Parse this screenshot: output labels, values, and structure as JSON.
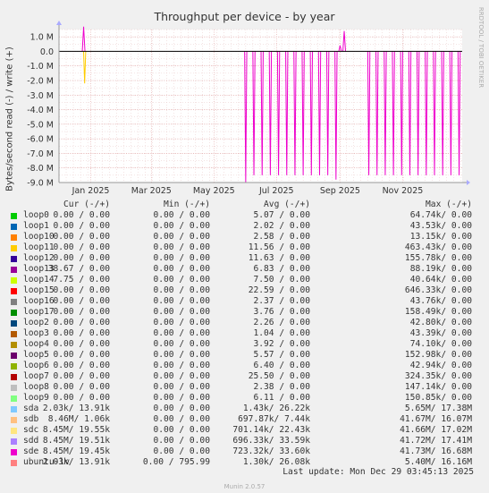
{
  "title": "Throughput per device - by year",
  "ylabel": "Bytes/second read (-) / write (+)",
  "side_label": "RRDTOOL / TOBI OETIKER",
  "footer": "Munin 2.0.57",
  "last_update": "Last update: Mon Dec 29 03:45:13 2025",
  "legend_headers": {
    "cur": "Cur (-/+)",
    "min": "Min (-/+)",
    "avg": "Avg (-/+)",
    "max": "Max (-/+)"
  },
  "legend": [
    {
      "name": "loop0",
      "color": "#00cc00",
      "cur": "0.00 /   0.00",
      "min": "0.00 /   0.00",
      "avg": "5.07 /   0.00",
      "max": "64.74k/   0.00"
    },
    {
      "name": "loop1",
      "color": "#0066b3",
      "cur": "0.00 /   0.00",
      "min": "0.00 /   0.00",
      "avg": "2.02 /   0.00",
      "max": "43.53k/   0.00"
    },
    {
      "name": "loop10",
      "color": "#ff8000",
      "cur": "0.00 /   0.00",
      "min": "0.00 /   0.00",
      "avg": "2.58 /   0.00",
      "max": "13.15k/   0.00"
    },
    {
      "name": "loop11",
      "color": "#ffcc00",
      "cur": "0.00 /   0.00",
      "min": "0.00 /   0.00",
      "avg": "11.56 /   0.00",
      "max": "463.43k/   0.00"
    },
    {
      "name": "loop12",
      "color": "#330099",
      "cur": "0.00 /   0.00",
      "min": "0.00 /   0.00",
      "avg": "11.63 /   0.00",
      "max": "155.78k/   0.00"
    },
    {
      "name": "loop13",
      "color": "#990099",
      "cur": "38.67 /   0.00",
      "min": "0.00 /   0.00",
      "avg": "6.83 /   0.00",
      "max": "88.19k/   0.00"
    },
    {
      "name": "loop14",
      "color": "#ccff00",
      "cur": "7.75 /   0.00",
      "min": "0.00 /   0.00",
      "avg": "7.50 /   0.00",
      "max": "40.64k/   0.00"
    },
    {
      "name": "loop15",
      "color": "#ff0000",
      "cur": "0.00 /   0.00",
      "min": "0.00 /   0.00",
      "avg": "22.59 /   0.00",
      "max": "646.33k/   0.00"
    },
    {
      "name": "loop16",
      "color": "#808080",
      "cur": "0.00 /   0.00",
      "min": "0.00 /   0.00",
      "avg": "2.37 /   0.00",
      "max": "43.76k/   0.00"
    },
    {
      "name": "loop17",
      "color": "#008f00",
      "cur": "0.00 /   0.00",
      "min": "0.00 /   0.00",
      "avg": "3.76 /   0.00",
      "max": "158.49k/   0.00"
    },
    {
      "name": "loop2",
      "color": "#00487d",
      "cur": "0.00 /   0.00",
      "min": "0.00 /   0.00",
      "avg": "2.26 /   0.00",
      "max": "42.80k/   0.00"
    },
    {
      "name": "loop3",
      "color": "#b35a00",
      "cur": "0.00 /   0.00",
      "min": "0.00 /   0.00",
      "avg": "1.04 /   0.00",
      "max": "43.39k/   0.00"
    },
    {
      "name": "loop4",
      "color": "#b38f00",
      "cur": "0.00 /   0.00",
      "min": "0.00 /   0.00",
      "avg": "3.92 /   0.00",
      "max": "74.10k/   0.00"
    },
    {
      "name": "loop5",
      "color": "#6b006b",
      "cur": "0.00 /   0.00",
      "min": "0.00 /   0.00",
      "avg": "5.57 /   0.00",
      "max": "152.98k/   0.00"
    },
    {
      "name": "loop6",
      "color": "#8fb300",
      "cur": "0.00 /   0.00",
      "min": "0.00 /   0.00",
      "avg": "6.40 /   0.00",
      "max": "42.94k/   0.00"
    },
    {
      "name": "loop7",
      "color": "#b30000",
      "cur": "0.00 /   0.00",
      "min": "0.00 /   0.00",
      "avg": "25.50 /   0.00",
      "max": "324.35k/   0.00"
    },
    {
      "name": "loop8",
      "color": "#bebebe",
      "cur": "0.00 /   0.00",
      "min": "0.00 /   0.00",
      "avg": "2.38 /   0.00",
      "max": "147.14k/   0.00"
    },
    {
      "name": "loop9",
      "color": "#80ff80",
      "cur": "0.00 /   0.00",
      "min": "0.00 /   0.00",
      "avg": "6.11 /   0.00",
      "max": "150.85k/   0.00"
    },
    {
      "name": "sda",
      "color": "#80c9ff",
      "cur": "2.03k/  13.91k",
      "min": "0.00 /   0.00",
      "avg": "1.43k/  26.22k",
      "max": "5.65M/  17.38M"
    },
    {
      "name": "sdb",
      "color": "#ffc080",
      "cur": "8.46M/   1.06k",
      "min": "0.00 /   0.00",
      "avg": "697.87k/   7.44k",
      "max": "41.67M/  16.07M"
    },
    {
      "name": "sdc",
      "color": "#ffe680",
      "cur": "8.45M/  19.55k",
      "min": "0.00 /   0.00",
      "avg": "701.14k/  22.43k",
      "max": "41.66M/  17.02M"
    },
    {
      "name": "sdd",
      "color": "#aa80ff",
      "cur": "8.45M/  19.51k",
      "min": "0.00 /   0.00",
      "avg": "696.33k/  33.59k",
      "max": "41.72M/  17.41M"
    },
    {
      "name": "sde",
      "color": "#ee00cc",
      "cur": "8.45M/  19.45k",
      "min": "0.00 /   0.00",
      "avg": "723.32k/  33.60k",
      "max": "41.73M/  16.68M"
    },
    {
      "name": "ubuntu-lv",
      "color": "#ff8080",
      "cur": "2.03k/  13.91k",
      "min": "0.00 / 795.99",
      "avg": "1.30k/  26.08k",
      "max": "5.40M/  16.16M"
    }
  ],
  "chart_data": {
    "type": "line",
    "title": "Throughput per device - by year",
    "ylabel": "Bytes/second read (-) / write (+)",
    "ylim": [
      -9000000,
      1500000
    ],
    "yticks": [
      1000000,
      0,
      -1000000,
      -2000000,
      -3000000,
      -4000000,
      -5000000,
      -6000000,
      -7000000,
      -8000000,
      -9000000
    ],
    "ytick_labels": [
      "1.0 M",
      "0.0",
      "-1.0 M",
      "-2.0 M",
      "-3.0 M",
      "-4.0 M",
      "-5.0 M",
      "-6.0 M",
      "-7.0 M",
      "-8.0 M",
      "-9.0 M"
    ],
    "xlim": [
      "2024-12-01",
      "2025-12-29"
    ],
    "xticks": [
      "2025-01-01",
      "2025-03-01",
      "2025-05-01",
      "2025-07-01",
      "2025-09-01",
      "2025-11-01"
    ],
    "xtick_labels": [
      "Jan 2025",
      "Mar 2025",
      "May 2025",
      "Jul 2025",
      "Sep 2025",
      "Nov 2025"
    ],
    "grid": true,
    "series": [
      {
        "name": "sde",
        "color": "#ee00cc",
        "read_dips": [
          {
            "x": "2025-06-01",
            "y": -9000000
          },
          {
            "x": "2025-06-09",
            "y": -8500000
          },
          {
            "x": "2025-06-17",
            "y": -8500000
          },
          {
            "x": "2025-06-25",
            "y": -8500000
          },
          {
            "x": "2025-07-03",
            "y": -8500000
          },
          {
            "x": "2025-07-11",
            "y": -8500000
          },
          {
            "x": "2025-07-19",
            "y": -8500000
          },
          {
            "x": "2025-07-27",
            "y": -8500000
          },
          {
            "x": "2025-08-04",
            "y": -8500000
          },
          {
            "x": "2025-08-12",
            "y": -8500000
          },
          {
            "x": "2025-08-20",
            "y": -8500000
          },
          {
            "x": "2025-08-28",
            "y": -8800000
          },
          {
            "x": "2025-09-29",
            "y": -8500000
          },
          {
            "x": "2025-10-07",
            "y": -8500000
          },
          {
            "x": "2025-10-15",
            "y": -8500000
          },
          {
            "x": "2025-10-23",
            "y": -8500000
          },
          {
            "x": "2025-10-31",
            "y": -8500000
          },
          {
            "x": "2025-11-08",
            "y": -8500000
          },
          {
            "x": "2025-11-16",
            "y": -8500000
          },
          {
            "x": "2025-11-24",
            "y": -8500000
          },
          {
            "x": "2025-12-02",
            "y": -8500000
          },
          {
            "x": "2025-12-10",
            "y": -8500000
          },
          {
            "x": "2025-12-18",
            "y": -8500000
          },
          {
            "x": "2025-12-26",
            "y": -8500000
          }
        ],
        "write_peaks": [
          {
            "x": "2024-12-25",
            "y": 1700000
          },
          {
            "x": "2025-09-01",
            "y": 400000
          },
          {
            "x": "2025-09-05",
            "y": 1400000
          }
        ]
      },
      {
        "name": "loop11",
        "color": "#ffcc00",
        "read_dips": [
          {
            "x": "2024-12-26",
            "y": -2200000
          }
        ]
      }
    ]
  }
}
